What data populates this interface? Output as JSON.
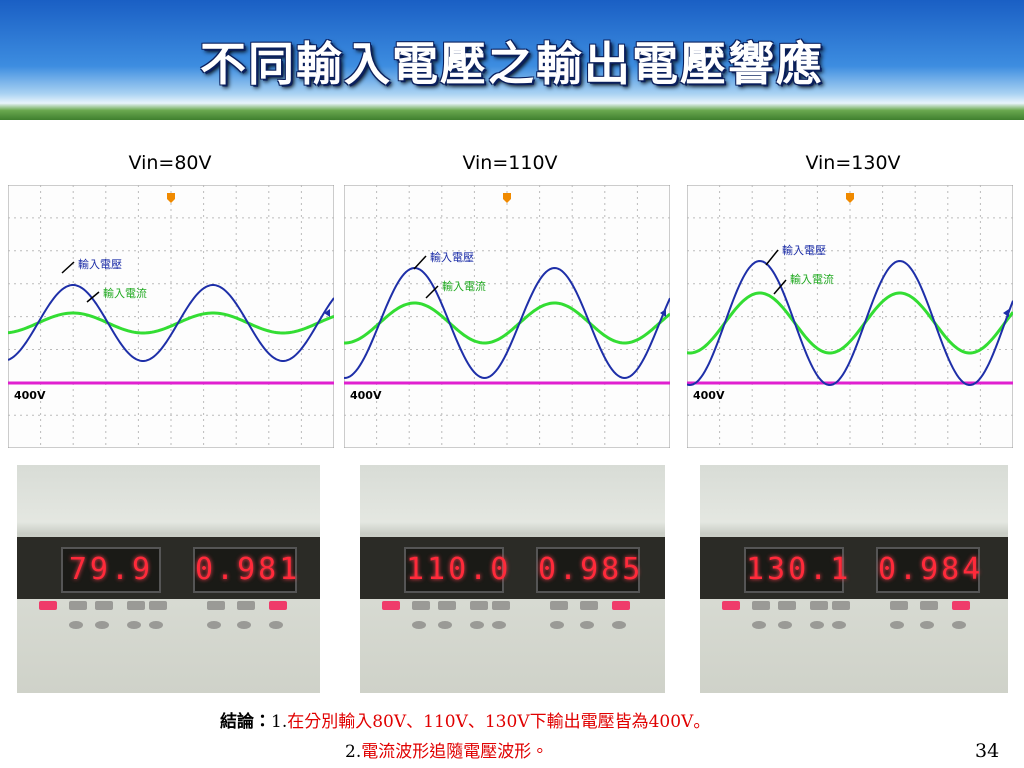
{
  "header": {
    "title": "不同輸入電壓之輸出電壓響應"
  },
  "panels": [
    {
      "label": "Vin=80V",
      "scope": {
        "voltage_label": "輸入電壓",
        "current_label": "輸入電流",
        "output_label": "400V"
      },
      "meter": {
        "voltage": "79.9",
        "power_factor": "0.981"
      }
    },
    {
      "label": "Vin=110V",
      "scope": {
        "voltage_label": "輸入電壓",
        "current_label": "輸入電流",
        "output_label": "400V"
      },
      "meter": {
        "voltage": "110.0",
        "power_factor": "0.985"
      }
    },
    {
      "label": "Vin=130V",
      "scope": {
        "voltage_label": "輸入電壓",
        "current_label": "輸入電流",
        "output_label": "400V"
      },
      "meter": {
        "voltage": "130.1",
        "power_factor": "0.984"
      }
    }
  ],
  "conclusion": {
    "heading": "結論：",
    "items": [
      {
        "number": "1.",
        "text": "在分別輸入80V、110V、130V下輸出電壓皆為400V。"
      },
      {
        "number": "2.",
        "text": "電流波形追隨電壓波形。"
      }
    ]
  },
  "page_number": "34"
}
